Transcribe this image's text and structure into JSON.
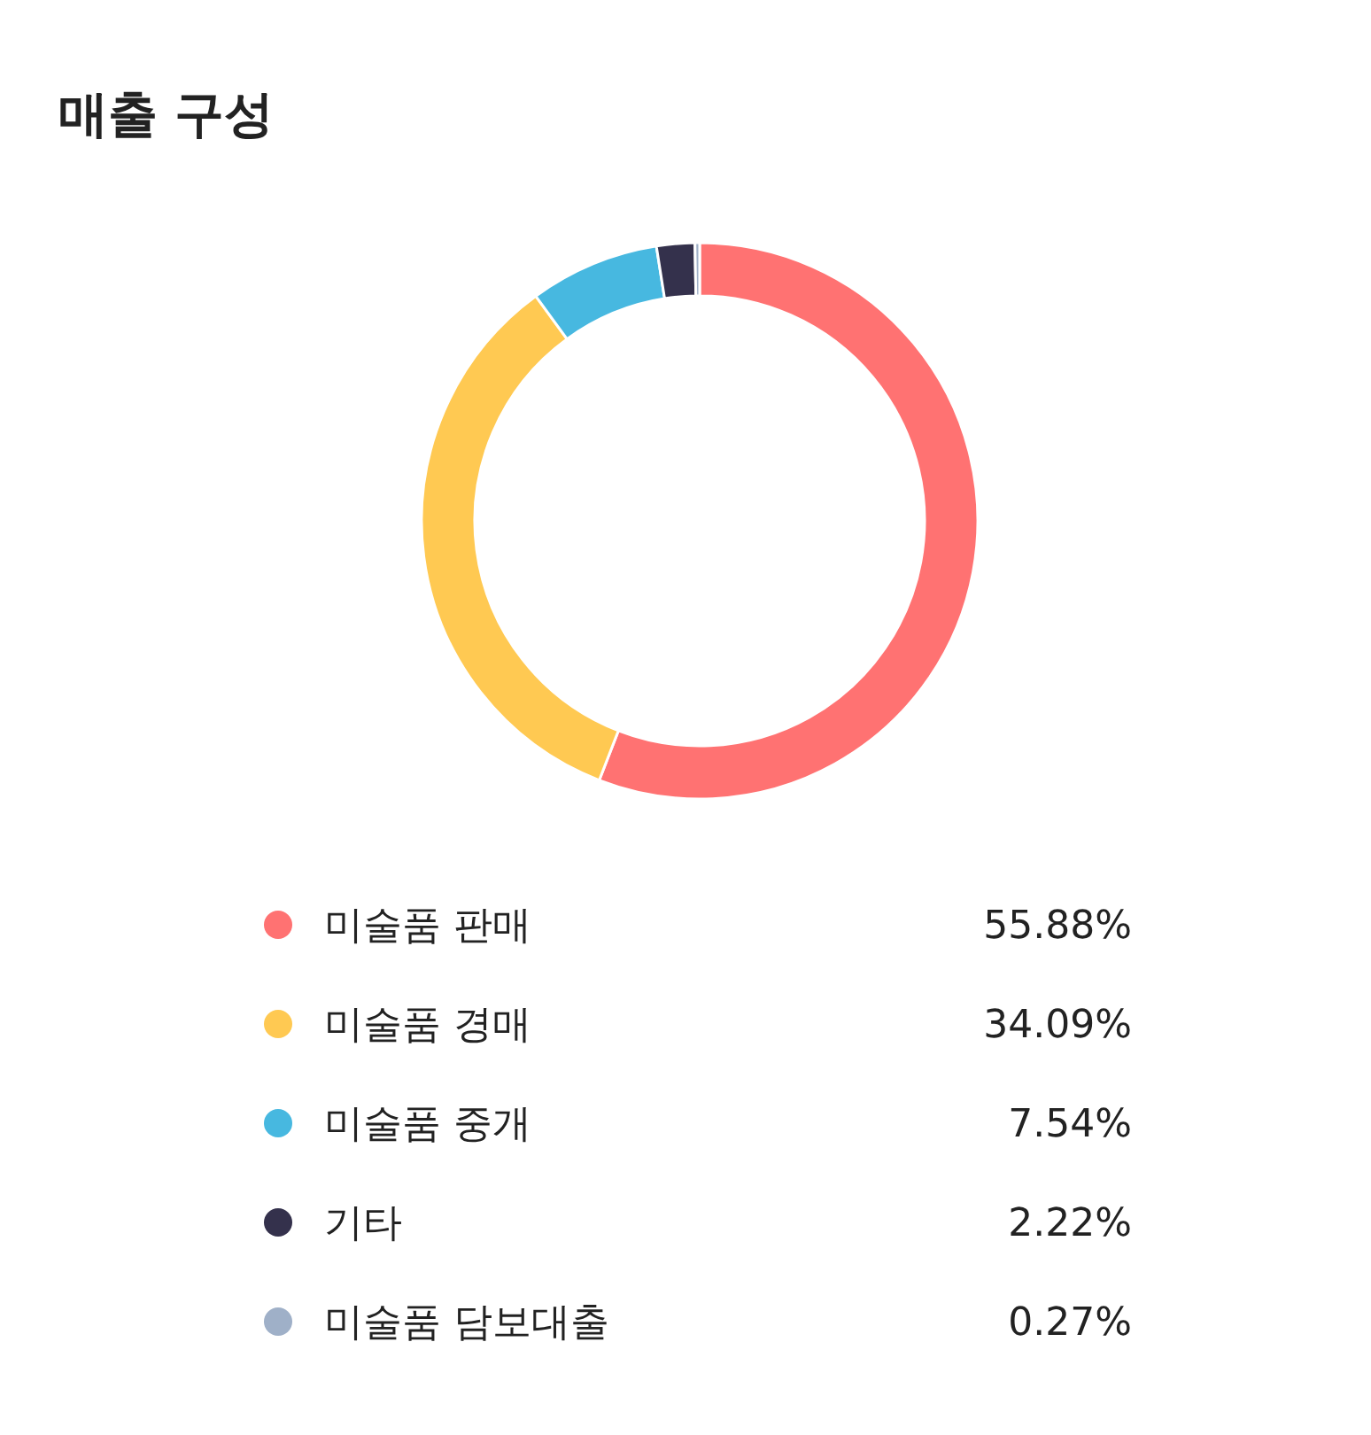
{
  "chart_data": {
    "type": "donut",
    "title": "매출 구성",
    "categories": [
      "미술품 판매",
      "미술품 경매",
      "미술품 중개",
      "기타",
      "미술품 담보대출"
    ],
    "values": [
      55.88,
      34.09,
      7.54,
      2.22,
      0.27
    ],
    "value_labels": [
      "55.88%",
      "34.09%",
      "7.54%",
      "2.22%",
      "0.27%"
    ],
    "colors": [
      "#ff7272",
      "#ffc952",
      "#47b8e0",
      "#34314c",
      "#9fb0c8"
    ],
    "legend": "bottom"
  }
}
